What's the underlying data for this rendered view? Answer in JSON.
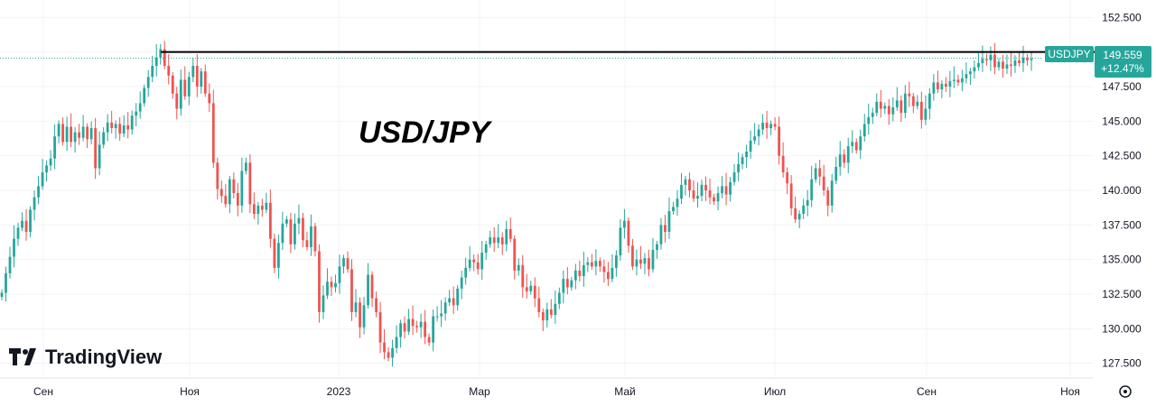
{
  "chart_data": {
    "type": "candlestick",
    "title": "USD/JPY",
    "symbol": "USDJPY",
    "last_price": "149.559",
    "change": "+12.47%",
    "resistance_level": 150.0,
    "ylim": [
      126.5,
      153.5
    ],
    "y_ticks": [
      "152.500",
      "150.000",
      "147.500",
      "145.000",
      "142.500",
      "140.000",
      "137.500",
      "135.000",
      "132.500",
      "130.000",
      "127.500"
    ],
    "x_ticks": [
      "Сен",
      "Ноя",
      "2023",
      "Мар",
      "Май",
      "Июл",
      "Сен",
      "Ноя"
    ],
    "colors": {
      "up": "#26a69a",
      "down": "#ef5350",
      "line": "#000000",
      "tag": "#26a69a",
      "grid": "#f0f3fa"
    },
    "closes": [
      132.6,
      134.0,
      135.2,
      136.5,
      137.3,
      137.8,
      137.0,
      138.6,
      139.5,
      140.3,
      141.3,
      141.8,
      142.3,
      143.9,
      144.8,
      143.5,
      144.6,
      143.5,
      144.2,
      143.8,
      144.6,
      143.7,
      144.5,
      141.6,
      143.3,
      144.2,
      144.9,
      144.5,
      144.8,
      144.1,
      144.7,
      144.4,
      145.4,
      145.7,
      146.3,
      147.4,
      148.2,
      149.0,
      149.6,
      150.2,
      149.0,
      148.3,
      147.0,
      145.9,
      148.0,
      146.8,
      148.2,
      149.0,
      147.5,
      148.6,
      147.0,
      146.3,
      142.0,
      140.1,
      139.6,
      139.0,
      140.8,
      139.8,
      138.9,
      141.4,
      142.0,
      139.0,
      138.3,
      138.9,
      138.6,
      139.1,
      136.5,
      134.4,
      136.2,
      137.6,
      137.9,
      136.1,
      137.6,
      138.0,
      136.4,
      135.9,
      137.4,
      135.6,
      131.2,
      132.4,
      133.4,
      133.0,
      133.3,
      134.5,
      135.1,
      134.3,
      131.2,
      131.9,
      130.1,
      131.7,
      133.9,
      132.2,
      131.2,
      129.0,
      128.3,
      127.9,
      128.6,
      129.4,
      130.4,
      129.8,
      130.7,
      130.2,
      130.1,
      130.5,
      129.4,
      129.0,
      130.9,
      130.9,
      131.1,
      131.9,
      132.2,
      131.7,
      132.9,
      133.7,
      134.4,
      135.0,
      134.8,
      134.3,
      135.5,
      136.1,
      136.6,
      136.2,
      136.6,
      136.1,
      137.2,
      136.5,
      134.2,
      134.6,
      133.0,
      132.7,
      133.1,
      132.2,
      131.2,
      130.6,
      131.4,
      131.0,
      131.8,
      132.6,
      133.6,
      133.0,
      133.5,
      134.2,
      133.8,
      134.6,
      134.8,
      134.5,
      134.9,
      134.5,
      134.1,
      133.6,
      134.4,
      135.3,
      137.3,
      137.8,
      136.0,
      134.5,
      135.0,
      134.7,
      135.1,
      134.3,
      135.7,
      136.1,
      137.5,
      137.0,
      138.5,
      138.8,
      139.4,
      140.4,
      140.8,
      140.0,
      139.4,
      139.6,
      140.4,
      140.0,
      139.5,
      139.2,
      139.8,
      140.3,
      139.7,
      140.6,
      141.3,
      141.9,
      142.4,
      142.8,
      143.6,
      143.9,
      144.4,
      144.9,
      144.5,
      144.8,
      144.6,
      142.5,
      141.3,
      140.5,
      138.7,
      137.9,
      138.3,
      138.9,
      139.3,
      140.8,
      141.6,
      141.0,
      140.0,
      138.9,
      140.7,
      141.7,
      142.6,
      142.0,
      143.2,
      143.5,
      142.9,
      143.9,
      144.8,
      145.3,
      145.6,
      146.4,
      145.9,
      146.1,
      145.5,
      146.0,
      146.5,
      145.6,
      147.0,
      146.8,
      146.1,
      146.4,
      145.1,
      145.9,
      147.0,
      147.8,
      147.3,
      147.7,
      147.5,
      147.9,
      148.0,
      147.8,
      148.1,
      148.4,
      148.6,
      148.9,
      149.2,
      149.5,
      149.4,
      149.8,
      148.9,
      149.3,
      148.8,
      149.1,
      149.0,
      149.4,
      149.2,
      149.6,
      149.4,
      149.5
    ]
  }
}
